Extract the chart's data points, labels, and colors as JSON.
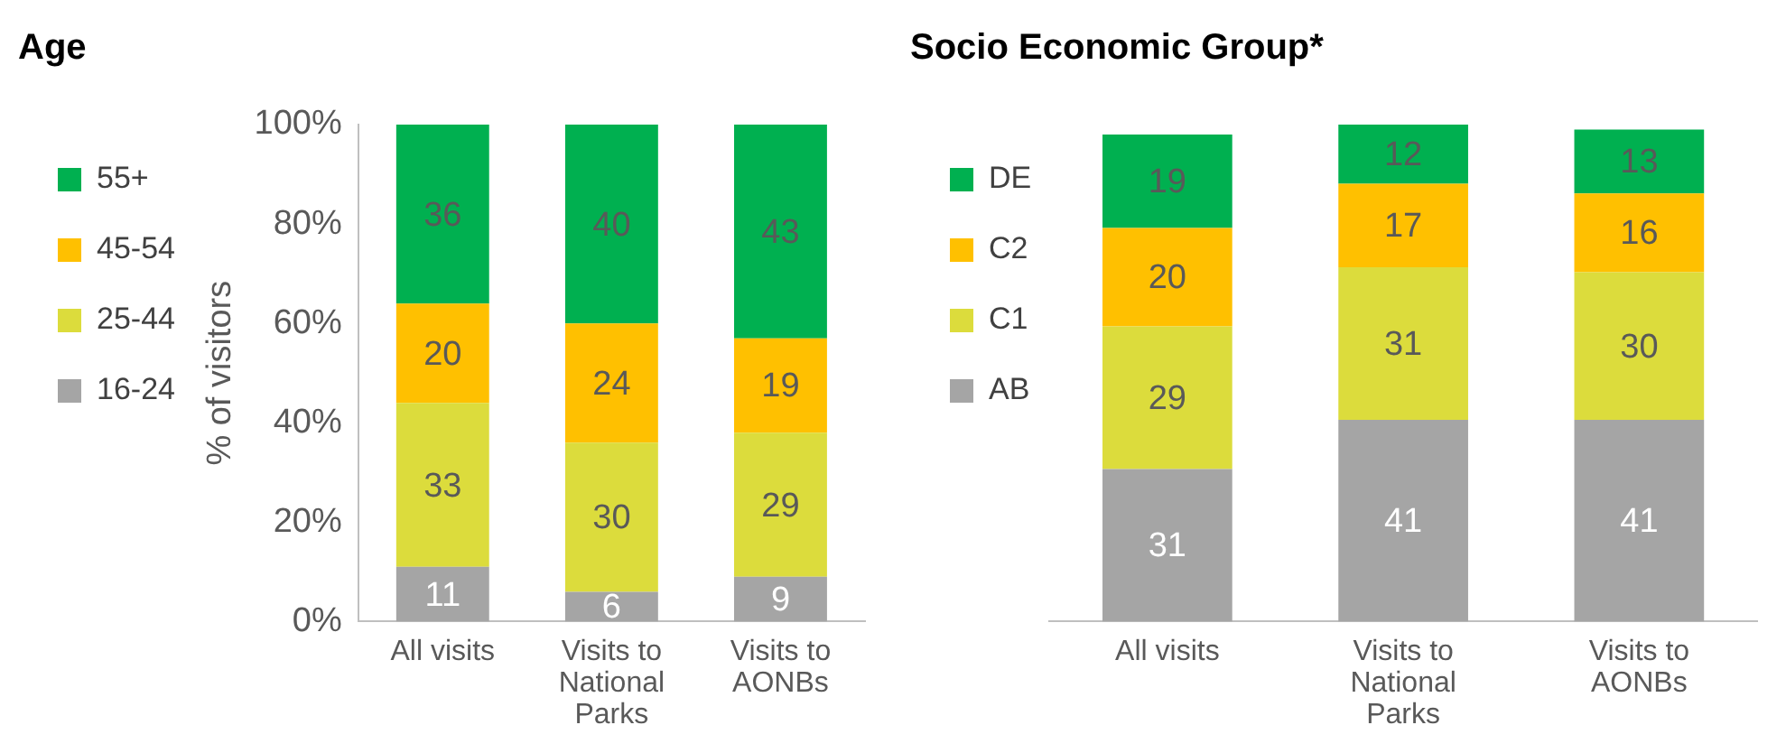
{
  "chart_data": [
    {
      "type": "bar",
      "title": "Age",
      "ylabel": "% of visitors",
      "stacked": true,
      "legend": "left",
      "data_labels": true,
      "grid": false,
      "categories": [
        "All visits",
        "Visits to National Parks",
        "Visits to AONBs"
      ],
      "ylim": [
        0,
        100
      ],
      "yticks": [
        {
          "value": 0,
          "label": "0%"
        },
        {
          "value": 20,
          "label": "20%"
        },
        {
          "value": 40,
          "label": "40%"
        },
        {
          "value": 60,
          "label": "60%"
        },
        {
          "value": 80,
          "label": "80%"
        },
        {
          "value": 100,
          "label": "100%"
        }
      ],
      "series": [
        {
          "name": "16-24",
          "color": "#a5a5a5",
          "values": [
            11,
            6,
            9
          ]
        },
        {
          "name": "25-44",
          "color": "#dcdc3c",
          "values": [
            33,
            30,
            29
          ]
        },
        {
          "name": "45-54",
          "color": "#ffc000",
          "values": [
            20,
            24,
            19
          ]
        },
        {
          "name": "55+",
          "color": "#00b050",
          "values": [
            36,
            40,
            43
          ]
        }
      ]
    },
    {
      "type": "bar",
      "title": "Socio Economic Group*",
      "stacked": true,
      "legend": "left",
      "data_labels": true,
      "grid": false,
      "tick_labels": "x",
      "categories": [
        "All visits",
        "Visits to National Parks",
        "Visits to AONBs"
      ],
      "series": [
        {
          "name": "AB",
          "color": "#a5a5a5",
          "values": [
            31,
            41,
            41
          ]
        },
        {
          "name": "C1",
          "color": "#dcdc3c",
          "values": [
            29,
            31,
            30
          ]
        },
        {
          "name": "C2",
          "color": "#ffc000",
          "values": [
            20,
            17,
            16
          ]
        },
        {
          "name": "DE",
          "color": "#00b050",
          "values": [
            19,
            12,
            13
          ]
        }
      ]
    }
  ]
}
